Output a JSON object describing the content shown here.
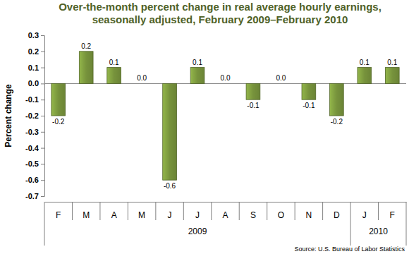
{
  "chart_data": {
    "type": "bar",
    "title": "Over-the-month percent change in real average hourly earnings, seasonally adjusted, February 2009–February 2010",
    "y_label": "Percent change",
    "source": "Source: U.S. Bureau of Labor Statistics",
    "categories": [
      "F",
      "M",
      "A",
      "M",
      "J",
      "J",
      "A",
      "S",
      "O",
      "N",
      "D",
      "J",
      "F"
    ],
    "category_groups": [
      {
        "label": "2009",
        "count": 11
      },
      {
        "label": "2010",
        "count": 2
      }
    ],
    "values": [
      -0.2,
      0.2,
      0.1,
      0,
      -0.6,
      0.1,
      0,
      -0.1,
      0,
      -0.1,
      -0.2,
      0.1,
      0.1
    ],
    "value_labels": [
      "-0.2",
      "0.2",
      "0.1",
      "0.0",
      "-0.6",
      "0.1",
      "0.0",
      "-0.1",
      "0.0",
      "-0.1",
      "-0.2",
      "0.1",
      "0.1"
    ],
    "color": "#77933c",
    "data_labels": true,
    "grid": false,
    "ylim": [
      -0.7,
      0.3
    ],
    "yticks": [
      -0.7,
      -0.6,
      -0.5,
      -0.4,
      -0.3,
      -0.2,
      -0.1,
      {
        "value": 0,
        "label": "0.0"
      },
      0.1,
      0.2,
      0.3
    ]
  }
}
